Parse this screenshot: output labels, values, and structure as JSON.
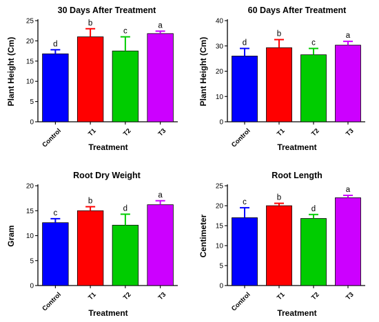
{
  "chart_data": [
    {
      "type": "bar",
      "title": "30 Days After Treatment",
      "xlabel": "Treatment",
      "ylabel": "Plant Height (Cm)",
      "categories": [
        "Control",
        "T1",
        "T2",
        "T3"
      ],
      "values": [
        16.8,
        21.0,
        17.5,
        21.8
      ],
      "errors": [
        1.0,
        2.0,
        3.5,
        0.6
      ],
      "significance": [
        "d",
        "b",
        "c",
        "a"
      ],
      "colors": [
        "#0000ff",
        "#ff0000",
        "#00cc00",
        "#cc00ff"
      ],
      "ylim": [
        0,
        25
      ],
      "yticks": [
        0,
        5,
        10,
        15,
        20,
        25
      ]
    },
    {
      "type": "bar",
      "title": "60 Days After Treatment",
      "xlabel": "Treatment",
      "ylabel": "Plant Height (Cm)",
      "categories": [
        "Control",
        "T1",
        "T2",
        "T3"
      ],
      "values": [
        26.0,
        29.3,
        26.5,
        30.3
      ],
      "errors": [
        3.0,
        3.2,
        2.5,
        1.5
      ],
      "significance": [
        "d",
        "b",
        "c",
        "a"
      ],
      "colors": [
        "#0000ff",
        "#ff0000",
        "#00cc00",
        "#cc00ff"
      ],
      "ylim": [
        0,
        40
      ],
      "yticks": [
        0,
        10,
        20,
        30,
        40
      ]
    },
    {
      "type": "bar",
      "title": "Root Dry Weight",
      "xlabel": "Treatment",
      "ylabel": "Gram",
      "categories": [
        "Control",
        "T1",
        "T2",
        "T3"
      ],
      "values": [
        12.6,
        15.0,
        12.1,
        16.2
      ],
      "errors": [
        0.8,
        0.8,
        2.2,
        0.8
      ],
      "significance": [
        "c",
        "b",
        "d",
        "a"
      ],
      "colors": [
        "#0000ff",
        "#ff0000",
        "#00cc00",
        "#cc00ff"
      ],
      "ylim": [
        0,
        20
      ],
      "yticks": [
        0,
        5,
        10,
        15,
        20
      ]
    },
    {
      "type": "bar",
      "title": "Root Length",
      "xlabel": "Treatment",
      "ylabel": "Centimeter",
      "categories": [
        "Control",
        "T1",
        "T2",
        "T3"
      ],
      "values": [
        17.0,
        20.0,
        16.8,
        22.0
      ],
      "errors": [
        2.5,
        0.6,
        1.0,
        0.6
      ],
      "significance": [
        "c",
        "b",
        "d",
        "a"
      ],
      "colors": [
        "#0000ff",
        "#ff0000",
        "#00cc00",
        "#cc00ff"
      ],
      "ylim": [
        0,
        25
      ],
      "yticks": [
        0,
        5,
        10,
        15,
        20,
        25
      ]
    }
  ]
}
